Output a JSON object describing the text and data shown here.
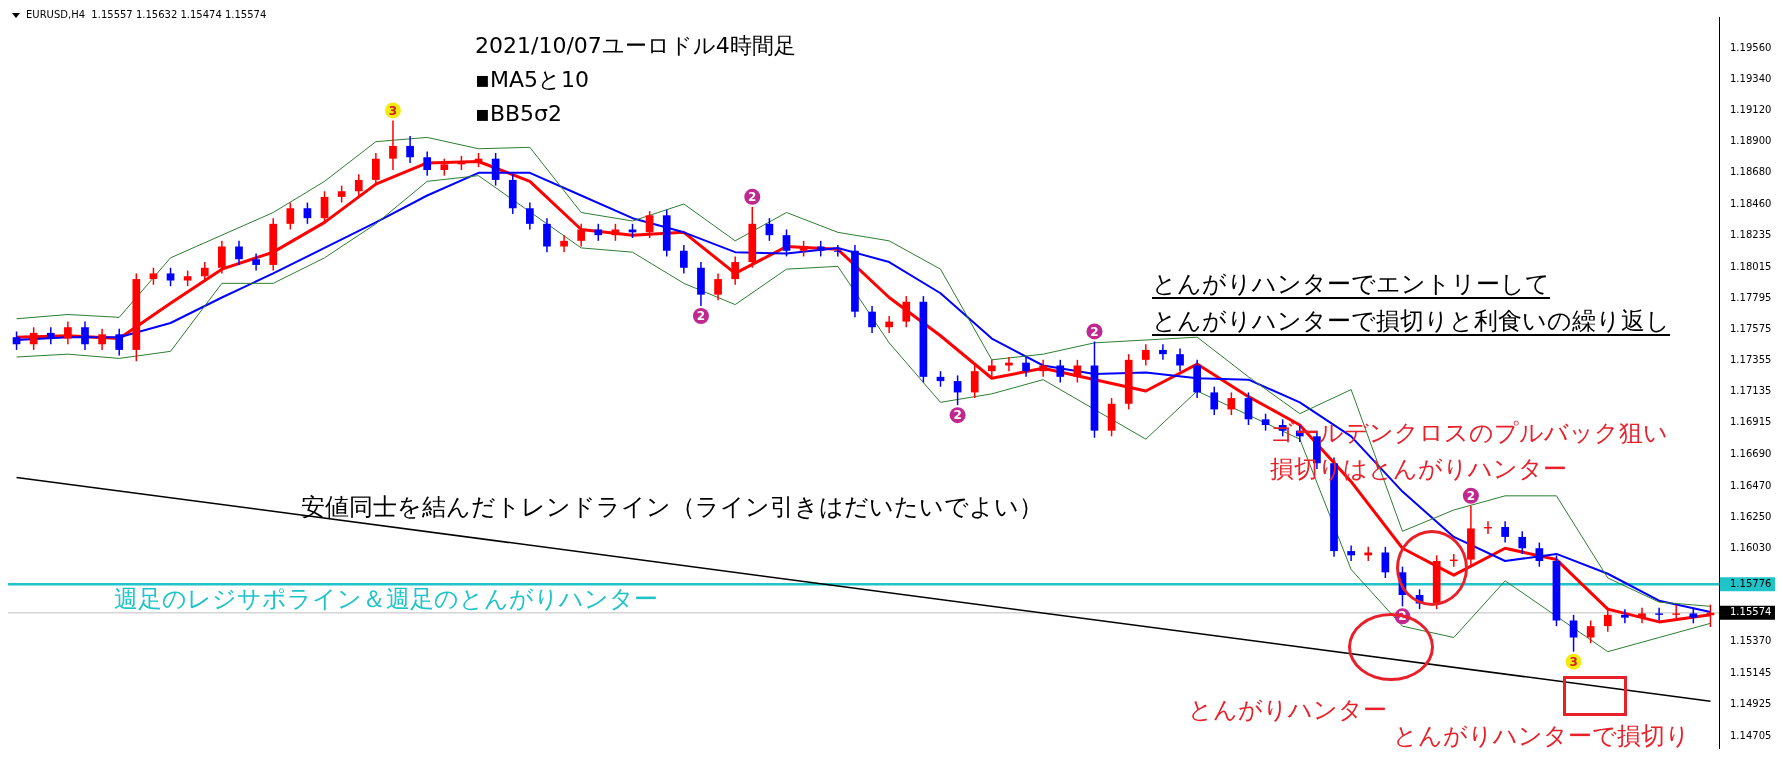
{
  "chart_data": {
    "type": "candlestick",
    "title": "2021/10/07ユーロドル4時間足",
    "categories": [
      null,
      null,
      null,
      null,
      null,
      null,
      null,
      null,
      null,
      null,
      null,
      null,
      null,
      null,
      null,
      null,
      null,
      null,
      null,
      null,
      null,
      null,
      null,
      null,
      null,
      null,
      null,
      null,
      null,
      null,
      null,
      null,
      null,
      null,
      null,
      null,
      null,
      null,
      null,
      null,
      null,
      null,
      null,
      null,
      null,
      null,
      null,
      null,
      null,
      null,
      null,
      null,
      null,
      null,
      null,
      null,
      null,
      null,
      null,
      null,
      null,
      null,
      null,
      null,
      null,
      null,
      null,
      null,
      null,
      null,
      null,
      null,
      null,
      null,
      null,
      null,
      null,
      null,
      null,
      null,
      null,
      null,
      null,
      null,
      null,
      null,
      null,
      null,
      null,
      null,
      null,
      null,
      null,
      null,
      null,
      null,
      null,
      null,
      null,
      null
    ],
    "ohlc": [
      [
        1.1752,
        1.1756,
        1.1743,
        1.1747
      ],
      [
        1.1747,
        1.1759,
        1.1743,
        1.1755
      ],
      [
        1.1755,
        1.1759,
        1.1747,
        1.1751
      ],
      [
        1.1751,
        1.1763,
        1.1747,
        1.1759
      ],
      [
        1.1759,
        1.1763,
        1.1743,
        1.1747
      ],
      [
        1.1747,
        1.1758,
        1.1743,
        1.1754
      ],
      [
        1.1754,
        1.1758,
        1.1739,
        1.1743
      ],
      [
        1.1743,
        1.1797,
        1.1735,
        1.1793
      ],
      [
        1.1793,
        1.1801,
        1.1789,
        1.1797
      ],
      [
        1.1797,
        1.1801,
        1.1788,
        1.1792
      ],
      [
        1.1792,
        1.1799,
        1.1788,
        1.1795
      ],
      [
        1.1795,
        1.1805,
        1.1791,
        1.1801
      ],
      [
        1.1801,
        1.182,
        1.1797,
        1.1816
      ],
      [
        1.1816,
        1.182,
        1.1803,
        1.1807
      ],
      [
        1.1807,
        1.1811,
        1.1799,
        1.1803
      ],
      [
        1.1803,
        1.1836,
        1.1799,
        1.1832
      ],
      [
        1.1832,
        1.1847,
        1.1828,
        1.1843
      ],
      [
        1.1843,
        1.1847,
        1.1832,
        1.1836
      ],
      [
        1.1836,
        1.1855,
        1.1832,
        1.1851
      ],
      [
        1.1851,
        1.1859,
        1.1847,
        1.1855
      ],
      [
        1.1855,
        1.1867,
        1.1851,
        1.1863
      ],
      [
        1.1863,
        1.1882,
        1.1859,
        1.1878
      ],
      [
        1.1878,
        1.1905,
        1.187,
        1.1887
      ],
      [
        1.1887,
        1.1894,
        1.1875,
        1.1879
      ],
      [
        1.1879,
        1.1883,
        1.1866,
        1.187
      ],
      [
        1.187,
        1.1878,
        1.1866,
        1.1874
      ],
      [
        1.1874,
        1.188,
        1.187,
        1.1876
      ],
      [
        1.1876,
        1.1882,
        1.1872,
        1.1878
      ],
      [
        1.1878,
        1.1882,
        1.1859,
        1.1863
      ],
      [
        1.1863,
        1.1867,
        1.1839,
        1.1843
      ],
      [
        1.1843,
        1.1847,
        1.1828,
        1.1832
      ],
      [
        1.1832,
        1.1836,
        1.1812,
        1.1816
      ],
      [
        1.1816,
        1.1824,
        1.1812,
        1.182
      ],
      [
        1.182,
        1.1832,
        1.1816,
        1.1828
      ],
      [
        1.1828,
        1.1832,
        1.182,
        1.1824
      ],
      [
        1.1824,
        1.1832,
        1.182,
        1.1828
      ],
      [
        1.1828,
        1.1832,
        1.1822,
        1.1826
      ],
      [
        1.1826,
        1.1841,
        1.1822,
        1.1838
      ],
      [
        1.1838,
        1.1842,
        1.1809,
        1.1813
      ],
      [
        1.1813,
        1.1817,
        1.1797,
        1.1801
      ],
      [
        1.1801,
        1.1805,
        1.1774,
        1.1782
      ],
      [
        1.1782,
        1.1797,
        1.1778,
        1.1793
      ],
      [
        1.1793,
        1.1809,
        1.1789,
        1.1805
      ],
      [
        1.1805,
        1.1844,
        1.1801,
        1.1832
      ],
      [
        1.1832,
        1.1836,
        1.182,
        1.1824
      ],
      [
        1.1824,
        1.1828,
        1.1809,
        1.1813
      ],
      [
        1.1813,
        1.182,
        1.1809,
        1.1816
      ],
      [
        1.1816,
        1.182,
        1.1809,
        1.1813
      ],
      [
        1.1813,
        1.1817,
        1.1809,
        1.1813
      ],
      [
        1.1813,
        1.1817,
        1.1766,
        1.177
      ],
      [
        1.177,
        1.1774,
        1.1755,
        1.1759
      ],
      [
        1.1759,
        1.1767,
        1.1755,
        1.1763
      ],
      [
        1.1763,
        1.1781,
        1.1759,
        1.1777
      ],
      [
        1.1777,
        1.1781,
        1.172,
        1.1724
      ],
      [
        1.1724,
        1.1728,
        1.1717,
        1.1721
      ],
      [
        1.1721,
        1.1725,
        1.1704,
        1.1713
      ],
      [
        1.1713,
        1.1732,
        1.1709,
        1.1728
      ],
      [
        1.1728,
        1.1736,
        1.1724,
        1.1732
      ],
      [
        1.1732,
        1.1738,
        1.1728,
        1.1734
      ],
      [
        1.1734,
        1.1738,
        1.1724,
        1.1728
      ],
      [
        1.1728,
        1.1736,
        1.1724,
        1.1732
      ],
      [
        1.1732,
        1.1736,
        1.172,
        1.1724
      ],
      [
        1.1724,
        1.1736,
        1.172,
        1.1732
      ],
      [
        1.1732,
        1.1749,
        1.1681,
        1.1686
      ],
      [
        1.1686,
        1.1709,
        1.1682,
        1.1705
      ],
      [
        1.1705,
        1.174,
        1.1701,
        1.1736
      ],
      [
        1.1736,
        1.1747,
        1.1732,
        1.1743
      ],
      [
        1.1743,
        1.1747,
        1.1736,
        1.174
      ],
      [
        1.174,
        1.1744,
        1.1728,
        1.1732
      ],
      [
        1.1732,
        1.1736,
        1.1709,
        1.1713
      ],
      [
        1.1713,
        1.1717,
        1.1697,
        1.1701
      ],
      [
        1.1701,
        1.1713,
        1.1697,
        1.1709
      ],
      [
        1.1709,
        1.1713,
        1.169,
        1.1694
      ],
      [
        1.1694,
        1.1698,
        1.1686,
        1.169
      ],
      [
        1.169,
        1.1694,
        1.1682,
        1.1686
      ],
      [
        1.1686,
        1.169,
        1.1678,
        1.1682
      ],
      [
        1.1682,
        1.1686,
        1.1659,
        1.1663
      ],
      [
        1.1663,
        1.1667,
        1.1597,
        1.1601
      ],
      [
        1.1601,
        1.1605,
        1.1594,
        1.1598
      ],
      [
        1.1598,
        1.1604,
        1.1594,
        1.16
      ],
      [
        1.16,
        1.1604,
        1.1582,
        1.1586
      ],
      [
        1.1586,
        1.159,
        1.1562,
        1.157
      ],
      [
        1.157,
        1.1574,
        1.156,
        1.1564
      ],
      [
        1.1564,
        1.1598,
        1.156,
        1.1594
      ],
      [
        1.1594,
        1.1599,
        1.159,
        1.1595
      ],
      [
        1.1595,
        1.1633,
        1.1591,
        1.1617
      ],
      [
        1.1617,
        1.1622,
        1.1613,
        1.1618
      ],
      [
        1.1618,
        1.1622,
        1.1607,
        1.1611
      ],
      [
        1.1611,
        1.1615,
        1.1599,
        1.1603
      ],
      [
        1.1603,
        1.1607,
        1.159,
        1.1594
      ],
      [
        1.1594,
        1.1598,
        1.1548,
        1.1552
      ],
      [
        1.1552,
        1.1556,
        1.153,
        1.154
      ],
      [
        1.154,
        1.1552,
        1.1536,
        1.1548
      ],
      [
        1.1548,
        1.156,
        1.1544,
        1.1556
      ],
      [
        1.1556,
        1.156,
        1.155,
        1.1554
      ],
      [
        1.1554,
        1.1561,
        1.155,
        1.1557
      ],
      [
        1.1557,
        1.1561,
        1.1552,
        1.1556
      ],
      [
        1.1556,
        1.1563,
        1.1552,
        1.1557
      ],
      [
        1.1557,
        1.1561,
        1.155,
        1.1554
      ],
      [
        1.15557,
        1.15632,
        1.15474,
        1.15574
      ]
    ],
    "colors": [
      "#0000ff",
      "#ff0000",
      "#0000ff",
      "#ff0000",
      "#0000ff",
      "#ff0000",
      "#0000ff",
      "#ff0000",
      "#ff0000",
      "#0000ff",
      "#ff0000",
      "#ff0000",
      "#ff0000",
      "#0000ff",
      "#0000ff",
      "#ff0000",
      "#ff0000",
      "#0000ff",
      "#ff0000",
      "#ff0000",
      "#ff0000",
      "#ff0000",
      "#ff0000",
      "#0000ff",
      "#0000ff",
      "#ff0000",
      "#ff0000",
      "#ff0000",
      "#0000ff",
      "#0000ff",
      "#0000ff",
      "#0000ff",
      "#ff0000",
      "#ff0000",
      "#0000ff",
      "#ff0000",
      "#0000ff",
      "#ff0000",
      "#0000ff",
      "#0000ff",
      "#0000ff",
      "#ff0000",
      "#ff0000",
      "#ff0000",
      "#0000ff",
      "#0000ff",
      "#ff0000",
      "#0000ff",
      "#0000ff",
      "#0000ff",
      "#0000ff",
      "#ff0000",
      "#ff0000",
      "#0000ff",
      "#0000ff",
      "#0000ff",
      "#ff0000",
      "#ff0000",
      "#ff0000",
      "#0000ff",
      "#ff0000",
      "#0000ff",
      "#ff0000",
      "#0000ff",
      "#ff0000",
      "#ff0000",
      "#ff0000",
      "#0000ff",
      "#0000ff",
      "#0000ff",
      "#0000ff",
      "#ff0000",
      "#0000ff",
      "#0000ff",
      "#0000ff",
      "#0000ff",
      "#0000ff",
      "#0000ff",
      "#0000ff",
      "#ff0000",
      "#0000ff",
      "#0000ff",
      "#0000ff",
      "#ff0000",
      "#ff0000",
      "#ff0000",
      "#ff0000",
      "#0000ff",
      "#0000ff",
      "#0000ff",
      "#0000ff",
      "#0000ff",
      "#ff0000",
      "#ff0000",
      "#0000ff",
      "#ff0000",
      "#0000ff",
      "#ff0000",
      "#0000ff",
      "#ff0000"
    ],
    "series": [
      {
        "type": "line",
        "color": "#2e7d32",
        "values": [
          1.1765,
          null,
          null,
          1.1768,
          null,
          null,
          1.1766,
          null,
          null,
          1.1808,
          null,
          null,
          null,
          null,
          null,
          1.184,
          null,
          null,
          1.1862,
          null,
          null,
          1.189,
          null,
          null,
          1.1893,
          null,
          null,
          1.1885,
          null,
          null,
          1.1886,
          null,
          null,
          1.184,
          null,
          null,
          1.1834,
          null,
          null,
          1.1846,
          null,
          null,
          1.182,
          null,
          null,
          1.184,
          null,
          null,
          1.1826,
          null,
          null,
          1.182,
          null,
          null,
          1.18,
          null,
          null,
          1.1736,
          null,
          null,
          1.174,
          null,
          null,
          1.1748,
          null,
          null,
          1.175,
          null,
          null,
          1.1752,
          null,
          null,
          1.1724,
          null,
          null,
          1.1698,
          null,
          null,
          1.1715,
          null,
          null,
          1.1615,
          null,
          null,
          1.163,
          null,
          null,
          1.164,
          null,
          null,
          1.164,
          null,
          null,
          1.1582,
          null,
          null,
          1.1565,
          null,
          null,
          1.1562
        ]
      },
      {
        "type": "line",
        "color": "#2e7d32",
        "values": [
          1.1738,
          null,
          null,
          1.174,
          null,
          null,
          1.1737,
          null,
          null,
          1.1742,
          null,
          null,
          1.179,
          null,
          null,
          1.179,
          null,
          null,
          1.1808,
          null,
          null,
          1.1832,
          null,
          null,
          1.1862,
          null,
          null,
          1.1866,
          null,
          null,
          null,
          null,
          null,
          1.1815,
          null,
          null,
          1.1812,
          null,
          null,
          1.179,
          null,
          null,
          1.1775,
          null,
          null,
          1.18,
          null,
          null,
          1.1802,
          null,
          null,
          1.1748,
          null,
          null,
          1.1706,
          null,
          null,
          1.1712,
          null,
          null,
          1.1722,
          null,
          null,
          null,
          null,
          null,
          1.168,
          null,
          null,
          1.1714,
          null,
          null,
          null,
          null,
          null,
          1.168,
          null,
          null,
          1.1588,
          null,
          null,
          1.1548,
          null,
          null,
          1.154,
          null,
          null,
          1.158,
          null,
          null,
          null,
          null,
          null,
          1.153,
          null,
          null,
          1.154,
          null,
          null,
          1.155
        ]
      },
      {
        "type": "line",
        "color": "#0000ff",
        "values": [
          1.175,
          null,
          null,
          1.1752,
          null,
          null,
          1.1752,
          null,
          null,
          1.1762,
          null,
          null,
          1.178,
          null,
          null,
          1.1797,
          null,
          null,
          1.1815,
          null,
          null,
          1.1833,
          null,
          null,
          1.1852,
          null,
          null,
          1.1868,
          null,
          null,
          1.1868,
          null,
          null,
          1.1852,
          null,
          null,
          1.1836,
          null,
          null,
          1.1826,
          null,
          null,
          1.1812,
          null,
          null,
          1.1811,
          null,
          null,
          1.1815,
          null,
          null,
          1.1805,
          null,
          null,
          1.1783,
          null,
          null,
          1.1751,
          null,
          null,
          1.1732,
          null,
          null,
          1.1726,
          null,
          null,
          1.1727,
          null,
          null,
          1.1723,
          null,
          null,
          1.1722,
          null,
          null,
          1.1706,
          null,
          null,
          1.1682,
          null,
          null,
          1.1643,
          null,
          null,
          1.1611,
          null,
          null,
          1.1594,
          null,
          null,
          1.1599,
          null,
          null,
          1.1585,
          null,
          null,
          1.1566,
          null,
          null,
          1.1558
        ]
      },
      {
        "type": "line",
        "color": "#ff0000",
        "values": [
          1.1752,
          null,
          null,
          1.1753,
          null,
          null,
          1.1751,
          null,
          null,
          1.1776,
          null,
          null,
          1.18,
          null,
          null,
          1.1812,
          null,
          null,
          1.1833,
          null,
          null,
          1.186,
          null,
          null,
          1.1875,
          null,
          null,
          1.1876,
          null,
          null,
          1.1862,
          null,
          null,
          1.1828,
          null,
          null,
          1.1824,
          null,
          null,
          1.1826,
          null,
          null,
          1.1797,
          null,
          null,
          1.1816,
          null,
          null,
          1.1814,
          null,
          null,
          1.178,
          null,
          null,
          1.1753,
          null,
          null,
          1.1723,
          null,
          null,
          1.173,
          null,
          null,
          null,
          null,
          null,
          1.1714,
          null,
          null,
          1.1733,
          null,
          null,
          1.171,
          null,
          null,
          1.169,
          null,
          null,
          1.165,
          null,
          null,
          1.1603,
          null,
          null,
          1.1584,
          null,
          null,
          1.1603,
          null,
          null,
          1.1595,
          null,
          null,
          1.156,
          null,
          null,
          1.1551,
          null,
          null,
          1.1556
        ]
      },
      {
        "type": "line",
        "color": "#000000",
        "values": [
          1.1653,
          null,
          null,
          null,
          null,
          null,
          null,
          null,
          null,
          null,
          null,
          null,
          null,
          null,
          null,
          null,
          null,
          null,
          null,
          null,
          null,
          null,
          null,
          null,
          null,
          null,
          null,
          null,
          null,
          null,
          null,
          null,
          null,
          null,
          null,
          null,
          null,
          null,
          null,
          null,
          null,
          null,
          null,
          null,
          null,
          null,
          null,
          null,
          null,
          null,
          null,
          null,
          null,
          null,
          null,
          null,
          null,
          null,
          null,
          null,
          null,
          null,
          null,
          null,
          null,
          null,
          null,
          null,
          null,
          null,
          null,
          null,
          null,
          null,
          null,
          null,
          null,
          null,
          null,
          null,
          null,
          null,
          null,
          null,
          null,
          null,
          null,
          null,
          null,
          null,
          null,
          null,
          null,
          null,
          null,
          null,
          null,
          null,
          null,
          1.1495
        ]
      }
    ],
    "ylim": [
      1.1462,
      1.1978
    ],
    "yticks": [
      {
        "value": 1.1956,
        "label": "1.19560"
      },
      {
        "value": 1.1934,
        "label": "1.19340"
      },
      {
        "value": 1.1912,
        "label": "1.19120"
      },
      {
        "value": 1.189,
        "label": "1.18900"
      },
      {
        "value": 1.1868,
        "label": "1.18680"
      },
      {
        "value": 1.1846,
        "label": "1.18460"
      },
      {
        "value": 1.18235,
        "label": "1.18235"
      },
      {
        "value": 1.18015,
        "label": "1.18015"
      },
      {
        "value": 1.17795,
        "label": "1.17795"
      },
      {
        "value": 1.17575,
        "label": "1.17575"
      },
      {
        "value": 1.17355,
        "label": "1.17355"
      },
      {
        "value": 1.17135,
        "label": "1.17135"
      },
      {
        "value": 1.16915,
        "label": "1.16915"
      },
      {
        "value": 1.1669,
        "label": "1.16690"
      },
      {
        "value": 1.1647,
        "label": "1.16470"
      },
      {
        "value": 1.1625,
        "label": "1.16250"
      },
      {
        "value": 1.1603,
        "label": "1.16030"
      },
      {
        "value": 1.15776,
        "label": "1.15776"
      },
      {
        "value": 1.15574,
        "label": "1.15574"
      },
      {
        "value": 1.1537,
        "label": "1.15370"
      },
      {
        "value": 1.15145,
        "label": "1.15145"
      },
      {
        "value": 1.14925,
        "label": "1.14925"
      },
      {
        "value": 1.14705,
        "label": "1.14705"
      }
    ],
    "tick_labels": "y",
    "ref_lines": [
      {
        "axis": "y",
        "value": 1.15776,
        "label": "週足のレジサポライン＆週足のとんがりハンター",
        "color": "#1fc3c8"
      },
      {
        "axis": "y",
        "value": 1.15574,
        "color": "#c0c0c0"
      }
    ],
    "annotations": [
      "EURUSD,H4  1.15557 1.15632 1.15474 1.15574",
      "▪MA5と10",
      "▪BB5σ2",
      "とんがりハンターでエントリーして",
      "とんがりハンターで損切りと利食いの繰り返し",
      "ゴールデンクロスのプルバック狙い",
      "損切りはとんがりハンター",
      "安値同士を結んだトレンドライン（ライン引きはだいたいでよい）",
      "とんがりハンター",
      "とんがりハンターで損切り",
      "3",
      "2",
      "2",
      "2",
      "2",
      "2",
      "2",
      "3"
    ]
  }
}
